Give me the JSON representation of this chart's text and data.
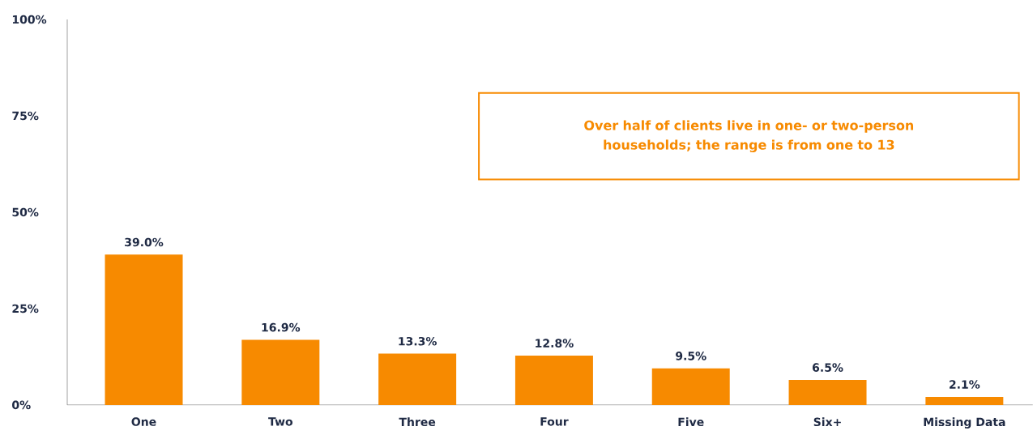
{
  "chart_data": {
    "type": "bar",
    "categories": [
      "One",
      "Two",
      "Three",
      "Four",
      "Five",
      "Six+",
      "Missing Data"
    ],
    "values": [
      39.0,
      16.9,
      13.3,
      12.8,
      9.5,
      6.5,
      2.1
    ],
    "value_labels": [
      "39.0%",
      "16.9%",
      "13.3%",
      "12.8%",
      "9.5%",
      "6.5%",
      "2.1%"
    ],
    "color": "#f78a00",
    "ylim": [
      0,
      100
    ],
    "yticks": [
      {
        "value": 0,
        "label": "0%"
      },
      {
        "value": 25,
        "label": "25%"
      },
      {
        "value": 50,
        "label": "50%"
      },
      {
        "value": 75,
        "label": "75%"
      },
      {
        "value": 100,
        "label": "100%"
      }
    ],
    "grid": false,
    "annotations": [
      "Over half of clients live in one- or two-person households; the range is from one to 13"
    ]
  }
}
